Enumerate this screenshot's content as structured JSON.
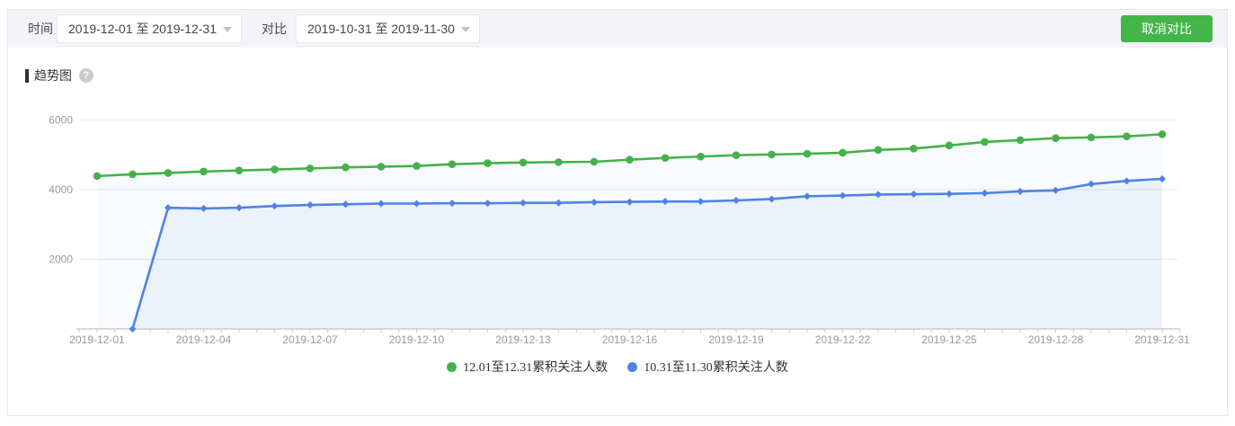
{
  "toolbar": {
    "time_label": "时间",
    "time_range": "2019-12-01 至 2019-12-31",
    "compare_label": "对比",
    "compare_range": "2019-10-31 至 2019-11-30",
    "cancel_button": "取消对比"
  },
  "section": {
    "title": "趋势图",
    "help_glyph": "?"
  },
  "colors": {
    "green": "#46b14b",
    "blue": "#5082e4",
    "button_green": "#44b549",
    "axis_text": "#999999",
    "axis_line": "#c9ccd1",
    "grid_line": "#e9e9ec",
    "area_fill_green": "rgba(80,132,226,0.045)",
    "area_fill_blue": "rgba(80,132,226,0.065)"
  },
  "chart_data": {
    "type": "line",
    "title": "趋势图",
    "xlabel": "",
    "ylabel": "",
    "grid": true,
    "legend_position": "bottom",
    "ylim": [
      0,
      6500
    ],
    "y_ticks": [
      2000,
      4000,
      6000
    ],
    "x_label_interval": 3,
    "x": [
      "2019-12-01",
      "2019-12-02",
      "2019-12-03",
      "2019-12-04",
      "2019-12-05",
      "2019-12-06",
      "2019-12-07",
      "2019-12-08",
      "2019-12-09",
      "2019-12-10",
      "2019-12-11",
      "2019-12-12",
      "2019-12-13",
      "2019-12-14",
      "2019-12-15",
      "2019-12-16",
      "2019-12-17",
      "2019-12-18",
      "2019-12-19",
      "2019-12-20",
      "2019-12-21",
      "2019-12-22",
      "2019-12-23",
      "2019-12-24",
      "2019-12-25",
      "2019-12-26",
      "2019-12-27",
      "2019-12-28",
      "2019-12-29",
      "2019-12-30",
      "2019-12-31"
    ],
    "series": [
      {
        "name": "12.01至12.31累积关注人数",
        "color": "#46b14b",
        "marker": "circle",
        "values": [
          4390,
          4440,
          4480,
          4520,
          4550,
          4580,
          4610,
          4640,
          4660,
          4680,
          4730,
          4760,
          4780,
          4790,
          4800,
          4860,
          4910,
          4950,
          4990,
          5010,
          5030,
          5060,
          5140,
          5180,
          5270,
          5370,
          5420,
          5480,
          5500,
          5530,
          5590
        ]
      },
      {
        "name": "10.31至11.30累积关注人数",
        "color": "#5082e4",
        "marker": "diamond",
        "values": [
          null,
          0,
          3480,
          3460,
          3480,
          3530,
          3560,
          3580,
          3600,
          3600,
          3610,
          3610,
          3620,
          3620,
          3640,
          3650,
          3660,
          3660,
          3690,
          3730,
          3810,
          3830,
          3860,
          3870,
          3880,
          3900,
          3950,
          3980,
          4160,
          4250,
          4310
        ]
      }
    ]
  }
}
